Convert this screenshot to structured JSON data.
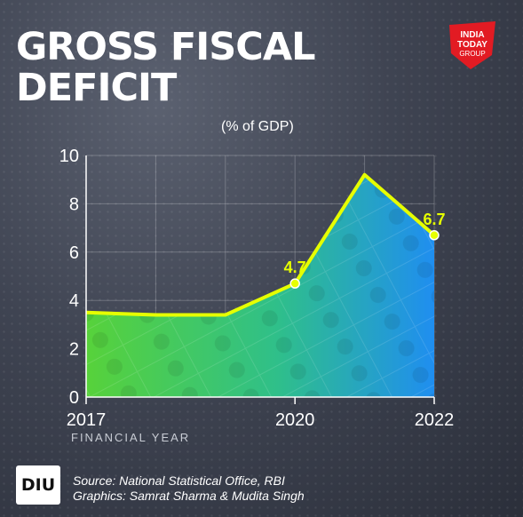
{
  "header": {
    "title": "GROSS FISCAL DEFICIT",
    "subtitle": "(% of GDP)",
    "logo_text": [
      "INDIA",
      "TODAY",
      "GROUP"
    ]
  },
  "footer": {
    "badge": "DIU",
    "source": "Source: National Statistical Office, RBI",
    "graphics": "Graphics: Samrat Sharma & Mudita Singh"
  },
  "colors": {
    "line": "#e6ff00",
    "fill_start": "#57d23a",
    "fill_end": "#1f8ef0",
    "logo_red": "#e21b23"
  },
  "chart_data": {
    "type": "area",
    "title": "GROSS FISCAL DEFICIT",
    "subtitle": "(% of GDP)",
    "xlabel": "FINANCIAL YEAR",
    "ylabel": "",
    "x": [
      2017,
      2018,
      2019,
      2020,
      2021,
      2022
    ],
    "values": [
      3.5,
      3.4,
      3.4,
      4.7,
      9.2,
      6.7
    ],
    "xticks": [
      "2017",
      "2020",
      "2022"
    ],
    "yticks": [
      0,
      2,
      4,
      6,
      8,
      10
    ],
    "ylim": [
      0,
      10
    ],
    "grid": true,
    "data_labels": [
      {
        "x": 2020,
        "text": "4.7"
      },
      {
        "x": 2022,
        "text": "6.7"
      }
    ]
  }
}
